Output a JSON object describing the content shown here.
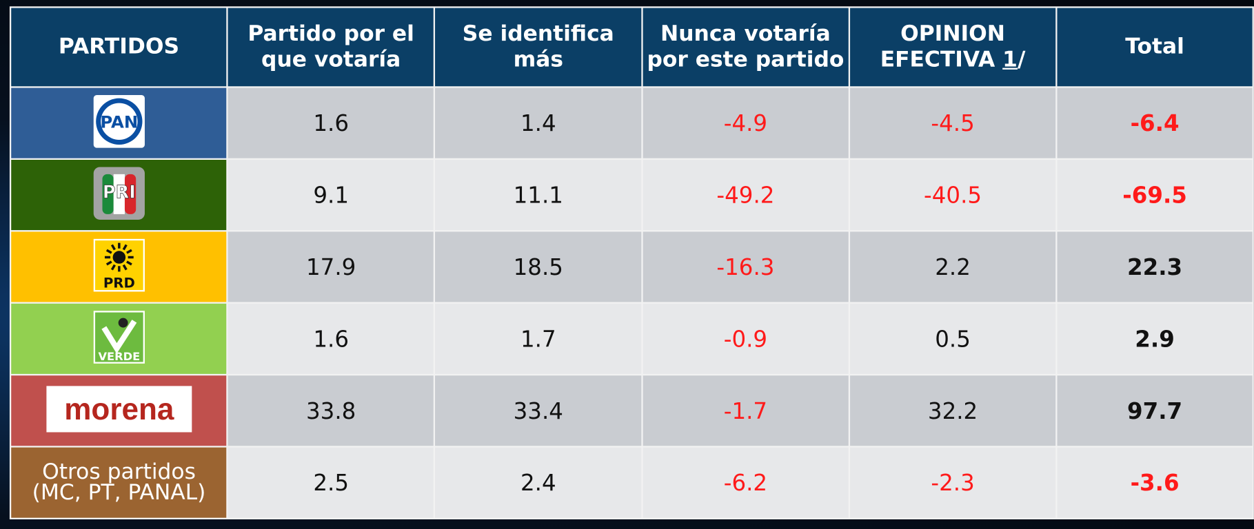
{
  "table": {
    "header": [
      "PARTIDOS",
      "Partido por el que votaría",
      "Se identifica más",
      "Nunca votaría por este partido",
      {
        "text": "OPINION EFECTIVA",
        "note": "1",
        "suffix": "/"
      },
      "Total"
    ],
    "rows": [
      {
        "label": "PAN",
        "color": "#2f5d96",
        "values": [
          1.6,
          1.4,
          -4.9,
          -4.5,
          -6.4
        ]
      },
      {
        "label": "PRI",
        "color": "#2d6207",
        "values": [
          9.1,
          11.1,
          -49.2,
          -40.5,
          -69.5
        ]
      },
      {
        "label": "PRD",
        "color": "#ffc000",
        "values": [
          17.9,
          18.5,
          -16.3,
          2.2,
          22.3
        ]
      },
      {
        "label": "VERDE",
        "color": "#92d050",
        "values": [
          1.6,
          1.7,
          -0.9,
          0.5,
          2.9
        ]
      },
      {
        "label": "morena",
        "color": "#c0504d",
        "values": [
          33.8,
          33.4,
          -1.7,
          32.2,
          97.7
        ]
      },
      {
        "label": [
          "Otros partidos",
          "(MC, PT, PANAL)"
        ],
        "color": "#9b6431",
        "values": [
          2.5,
          2.4,
          -6.2,
          -2.3,
          -3.6
        ]
      }
    ]
  }
}
